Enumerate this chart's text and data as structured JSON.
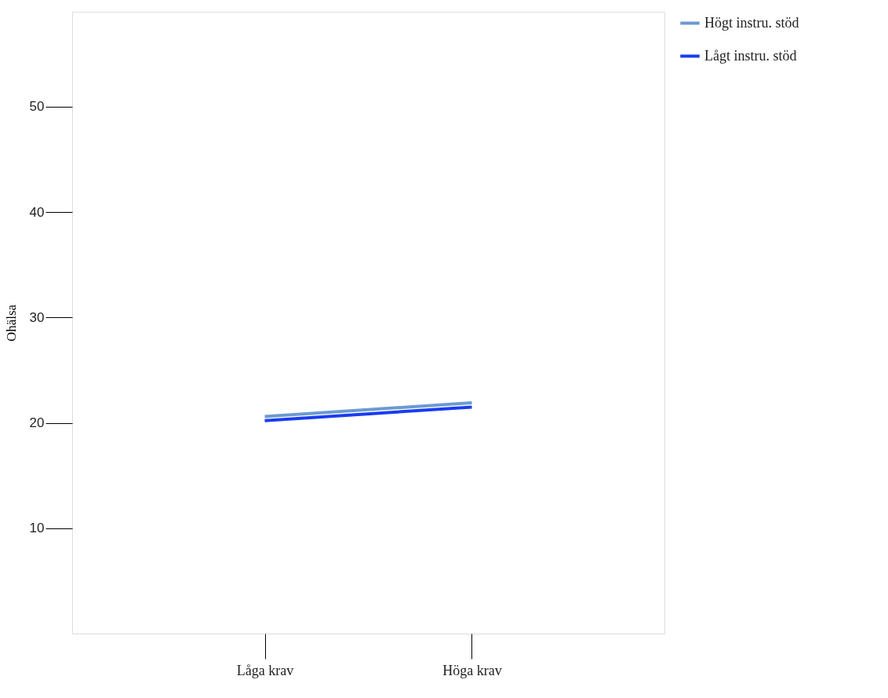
{
  "chart_data": {
    "type": "line",
    "ylabel": "Ohälsa",
    "categories": [
      "Låga krav",
      "Höga krav"
    ],
    "series": [
      {
        "name": "Högt instru. stöd",
        "color": "#6b9bd1",
        "values": [
          20.6,
          21.9
        ]
      },
      {
        "name": "Lågt instru. stöd",
        "color": "#1a3cf0",
        "values": [
          20.2,
          21.5
        ]
      }
    ],
    "ylim": [
      0,
      59
    ],
    "yticks": [
      10,
      20,
      30,
      40,
      50
    ],
    "grid": false,
    "legend": "top right",
    "marker": "none",
    "line_style": "solid"
  }
}
